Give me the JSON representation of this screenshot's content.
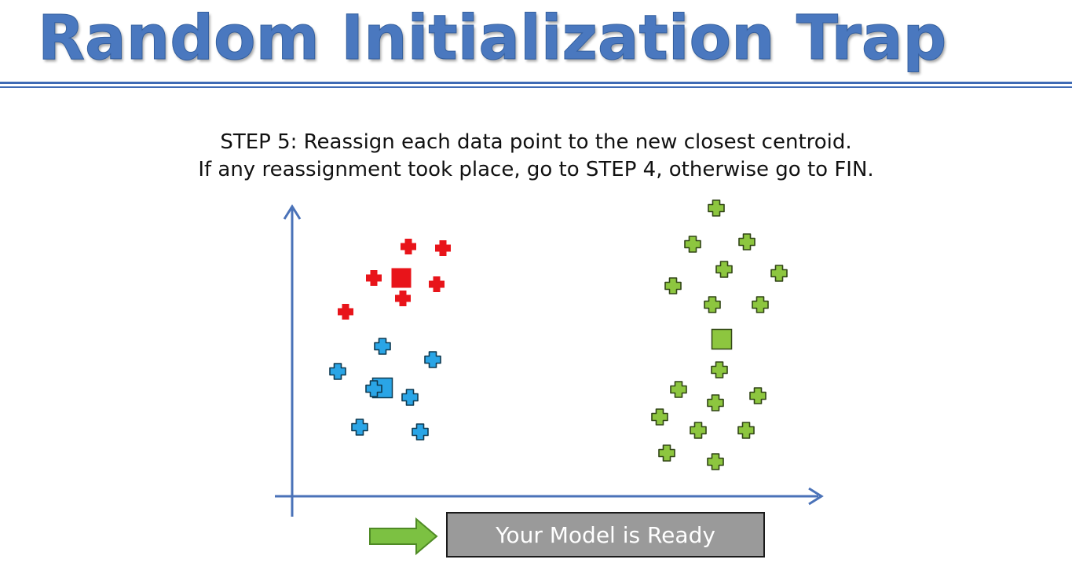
{
  "slide": {
    "title": "Random Initialization Trap",
    "step_line_1": "STEP 5: Reassign each data point to the new closest centroid.",
    "step_line_2": "If any reassignment took place, go to STEP 4, otherwise go to FIN.",
    "ready_button": "Your Model is Ready"
  },
  "colors": {
    "title": "#4a78bf",
    "axis": "#4a72b8",
    "red_cluster": "#e8141a",
    "blue_cluster": "#2aa5e6",
    "green_cluster": "#8dc63f",
    "arrow_green": "#7cc142",
    "button_gray": "#9a9a9a"
  },
  "clusters": [
    {
      "name": "red",
      "color": "#e8141a",
      "centroid": [
        511,
        354
      ],
      "points": [
        [
          520,
          314
        ],
        [
          564,
          316
        ],
        [
          476,
          354
        ],
        [
          556,
          362
        ],
        [
          513,
          380
        ],
        [
          440,
          397
        ]
      ]
    },
    {
      "name": "blue",
      "color": "#2aa5e6",
      "centroid": [
        487,
        494
      ],
      "points": [
        [
          487,
          441
        ],
        [
          551,
          458
        ],
        [
          430,
          473
        ],
        [
          476,
          495
        ],
        [
          522,
          506
        ],
        [
          458,
          544
        ],
        [
          535,
          550
        ]
      ]
    },
    {
      "name": "green",
      "color": "#8dc63f",
      "centroid": [
        919,
        432
      ],
      "points": [
        [
          912,
          265
        ],
        [
          882,
          311
        ],
        [
          951,
          308
        ],
        [
          922,
          343
        ],
        [
          992,
          348
        ],
        [
          857,
          364
        ],
        [
          907,
          388
        ],
        [
          968,
          388
        ],
        [
          916,
          471
        ],
        [
          864,
          496
        ],
        [
          965,
          504
        ],
        [
          911,
          513
        ],
        [
          840,
          531
        ],
        [
          889,
          548
        ],
        [
          950,
          548
        ],
        [
          849,
          577
        ],
        [
          911,
          588
        ]
      ]
    }
  ]
}
